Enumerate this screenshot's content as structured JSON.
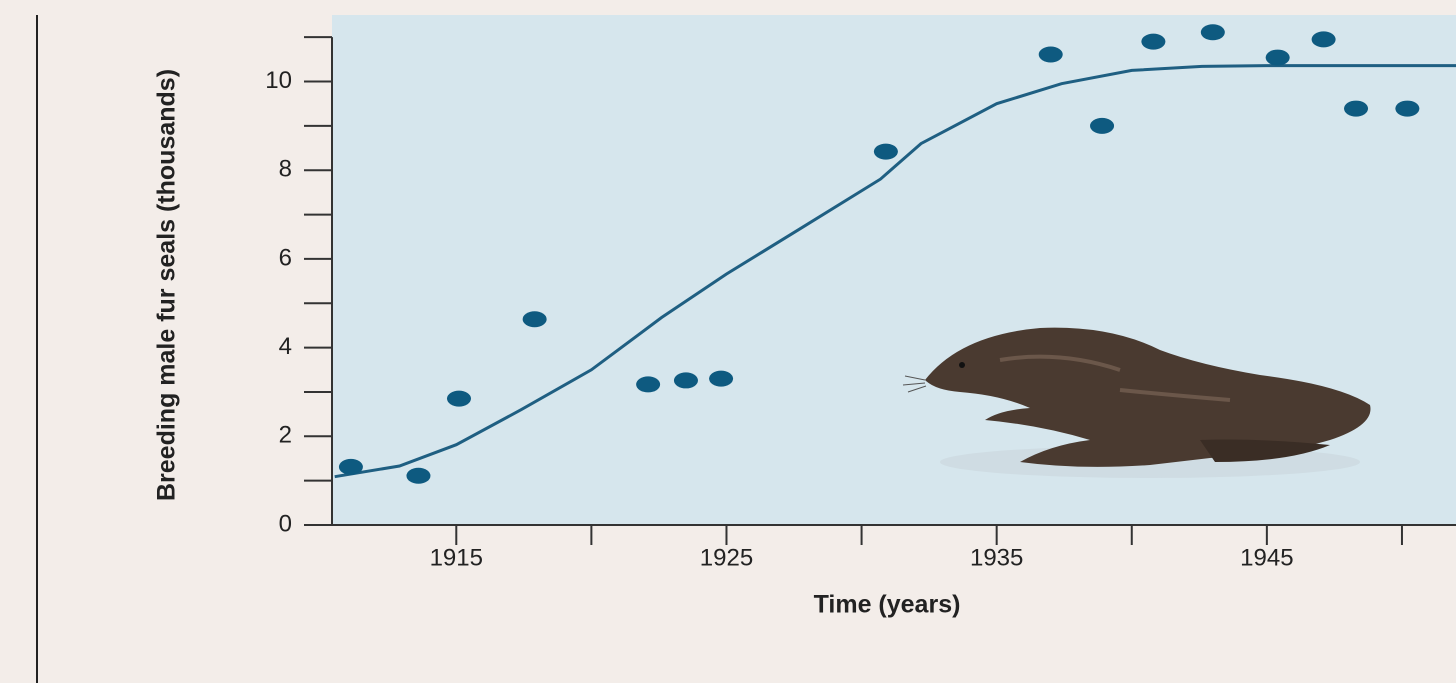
{
  "chart_data": {
    "type": "scatter",
    "ylabel": "Breeding male fur seals (thousands)",
    "xlabel": "Time (years)",
    "xlim": [
      1910.4,
      1952
    ],
    "ylim": [
      0,
      11.5
    ],
    "xticks": [
      1915,
      1925,
      1935,
      1945
    ],
    "xminor": [
      1920,
      1930,
      1940,
      1950
    ],
    "yticks": [
      0,
      2,
      4,
      6,
      8,
      10
    ],
    "yminor": [
      1,
      3,
      5,
      7,
      9,
      11
    ],
    "point_color": "#0e5a80",
    "line_color": "#1f5f82",
    "points": {
      "x": [
        1911.1,
        1913.6,
        1915.1,
        1917.9,
        1922.1,
        1923.5,
        1924.8,
        1930.9,
        1937.0,
        1938.9,
        1940.8,
        1943.0,
        1945.4,
        1947.1,
        1948.3,
        1950.2
      ],
      "y": [
        1.31,
        1.11,
        2.85,
        4.64,
        3.17,
        3.26,
        3.3,
        8.42,
        10.61,
        9.0,
        10.9,
        11.11,
        10.54,
        10.95,
        9.39,
        9.39
      ]
    },
    "fit": {
      "x": [
        1910.5,
        1912.9,
        1915,
        1917.4,
        1920,
        1922.6,
        1925,
        1927.7,
        1930.7,
        1932.2,
        1935,
        1937.4,
        1940,
        1942.6,
        1945,
        1952
      ],
      "y": [
        1.09,
        1.33,
        1.81,
        2.6,
        3.5,
        4.68,
        5.66,
        6.67,
        7.8,
        8.6,
        9.5,
        9.95,
        10.25,
        10.34,
        10.36,
        10.36
      ]
    }
  }
}
